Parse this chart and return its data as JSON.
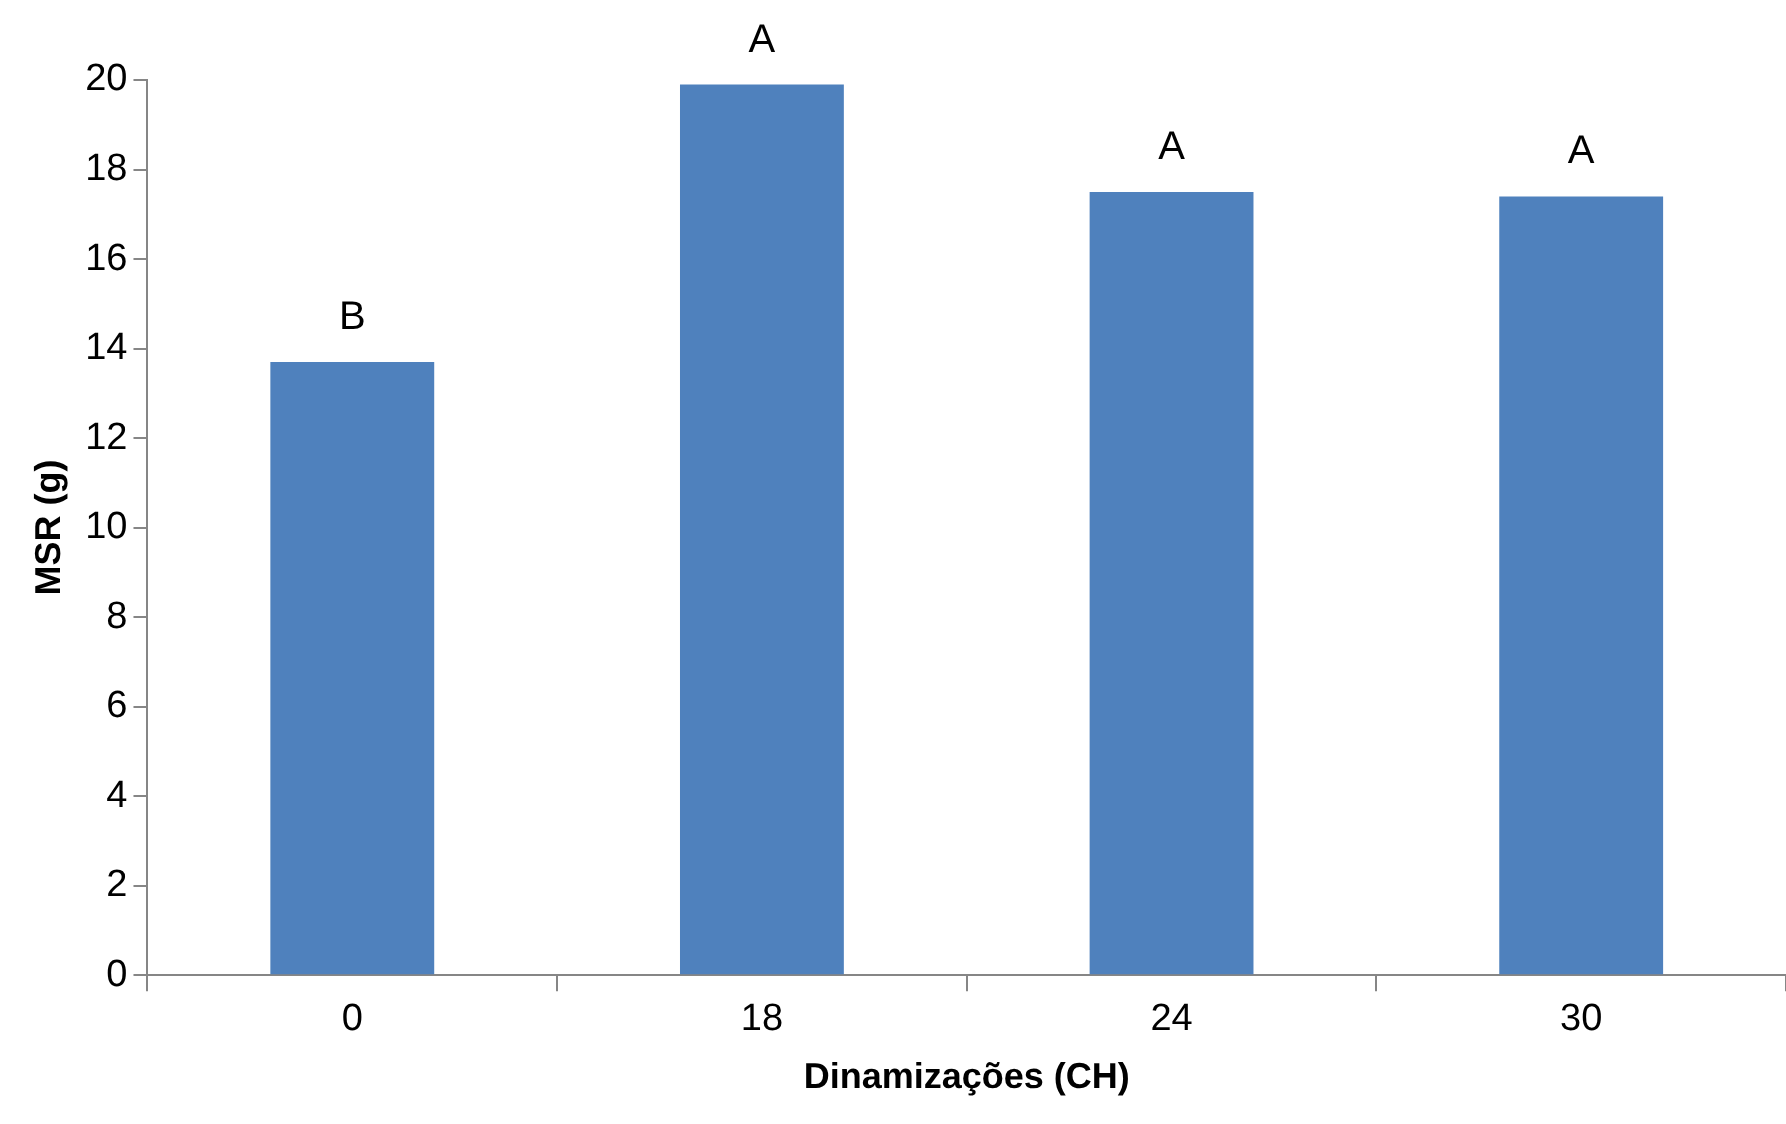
{
  "chart_data": {
    "type": "bar",
    "xlabel": "Dinamizações (CH)",
    "ylabel": "MSR (g)",
    "categories": [
      "0",
      "18",
      "24",
      "30"
    ],
    "values": [
      13.7,
      19.9,
      17.5,
      17.4
    ],
    "color": "#4f81bd",
    "ylim": [
      0,
      20
    ],
    "yticks": [
      0,
      2,
      4,
      6,
      8,
      10,
      12,
      14,
      16,
      18,
      20
    ],
    "grid": false,
    "annotations": [
      {
        "text": "B",
        "x": "0",
        "y": 13.7
      },
      {
        "text": "A",
        "x": "18",
        "y": 19.9
      },
      {
        "text": "A",
        "x": "24",
        "y": 17.5
      },
      {
        "text": "A",
        "x": "30",
        "y": 17.4
      }
    ]
  }
}
